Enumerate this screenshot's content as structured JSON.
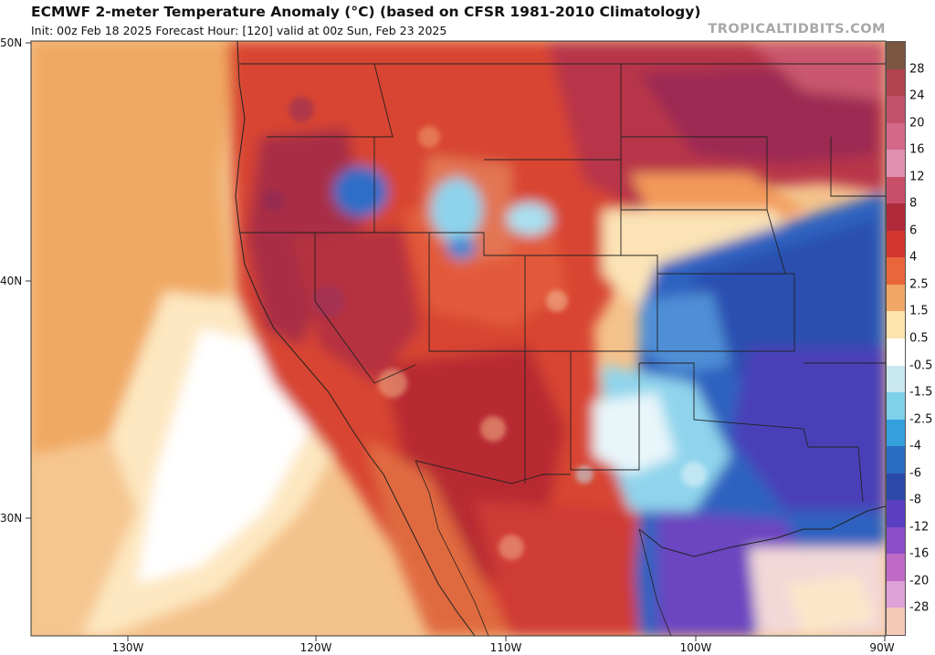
{
  "header": {
    "title": "ECMWF 2-meter Temperature Anomaly (°C) (based on CFSR 1981-2010 Climatology)",
    "subtitle": "Init: 00z Feb 18 2025   Forecast Hour: [120]   valid at 00z Sun, Feb 23 2025",
    "brand": "TROPICALTIDBITS.COM"
  },
  "axes": {
    "lat_labels": [
      "50N",
      "40N",
      "30N"
    ],
    "lon_labels": [
      "130W",
      "120W",
      "110W",
      "100W",
      "90W"
    ]
  },
  "colorbar": {
    "labels": [
      "28",
      "24",
      "20",
      "16",
      "12",
      "8",
      "6",
      "4",
      "2.5",
      "1.5",
      "0.5",
      "-0.5",
      "-1.5",
      "-2.5",
      "-4",
      "-6",
      "-8",
      "-12",
      "-16",
      "-20",
      "-28"
    ],
    "colors": [
      "#7a5540",
      "#b3434f",
      "#c2506a",
      "#d4688a",
      "#e290b0",
      "#c94f69",
      "#b02b3a",
      "#d1372e",
      "#e8663a",
      "#f2a665",
      "#fde3ae",
      "#ffffff",
      "#c9e8ef",
      "#7fd0ea",
      "#34a0dc",
      "#2a6ec4",
      "#2b4aa8",
      "#5a3fc0",
      "#8a4fc8",
      "#c06ac8",
      "#e0a0d8",
      "#f5c9b8"
    ]
  }
}
